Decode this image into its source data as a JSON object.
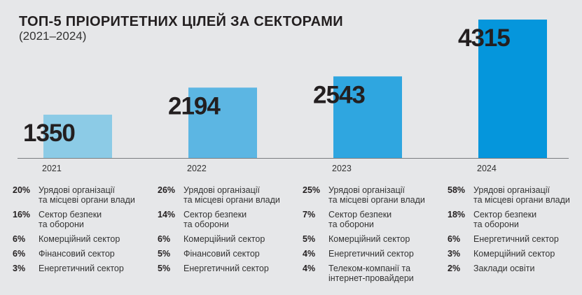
{
  "title": "ТОП-5 ПРІОРИТЕТНИХ ЦІЛЕЙ ЗА СЕКТОРАМИ",
  "subtitle": "(2021–2024)",
  "chart_data": {
    "type": "bar",
    "title": "ТОП-5 ПРІОРИТЕТНИХ ЦІЛЕЙ ЗА СЕКТОРАМИ (2021–2024)",
    "categories": [
      "2021",
      "2022",
      "2023",
      "2024"
    ],
    "values": [
      1350,
      2194,
      2543,
      4315
    ],
    "colors": [
      "#8ccbe6",
      "#5cb6e3",
      "#2fa6e0",
      "#0596dc"
    ],
    "ylim": [
      0,
      4315
    ],
    "grid": false,
    "xlabel": "",
    "ylabel": ""
  },
  "breakdown": [
    {
      "year": "2021",
      "items": [
        {
          "pct": "20%",
          "label": "Урядові організації\nта місцеві органи влади"
        },
        {
          "pct": "16%",
          "label": "Сектор безпеки\nта оборони"
        },
        {
          "pct": "6%",
          "label": "Комерційний сектор"
        },
        {
          "pct": "6%",
          "label": "Фінансовий сектор"
        },
        {
          "pct": "3%",
          "label": "Енергетичний сектор"
        }
      ]
    },
    {
      "year": "2022",
      "items": [
        {
          "pct": "26%",
          "label": "Урядові організації\nта місцеві органи влади"
        },
        {
          "pct": "14%",
          "label": "Сектор безпеки\nта оборони"
        },
        {
          "pct": "6%",
          "label": "Комерційний сектор"
        },
        {
          "pct": "5%",
          "label": "Фінансовий сектор"
        },
        {
          "pct": "5%",
          "label": "Енергетичний сектор"
        }
      ]
    },
    {
      "year": "2023",
      "items": [
        {
          "pct": "25%",
          "label": "Урядові організації\nта місцеві органи влади"
        },
        {
          "pct": "7%",
          "label": "Сектор безпеки\nта оборони"
        },
        {
          "pct": "5%",
          "label": "Комерційний сектор"
        },
        {
          "pct": "4%",
          "label": "Енергетичний сектор"
        },
        {
          "pct": "4%",
          "label": "Телеком-компанії та\nінтернет-провайдери"
        }
      ]
    },
    {
      "year": "2024",
      "items": [
        {
          "pct": "58%",
          "label": "Урядові організації\nта місцеві органи влади"
        },
        {
          "pct": "18%",
          "label": "Сектор безпеки\nта оборони"
        },
        {
          "pct": "6%",
          "label": "Енергетичний сектор"
        },
        {
          "pct": "3%",
          "label": "Комерційний сектор"
        },
        {
          "pct": "2%",
          "label": "Заклади освіти"
        }
      ]
    }
  ]
}
